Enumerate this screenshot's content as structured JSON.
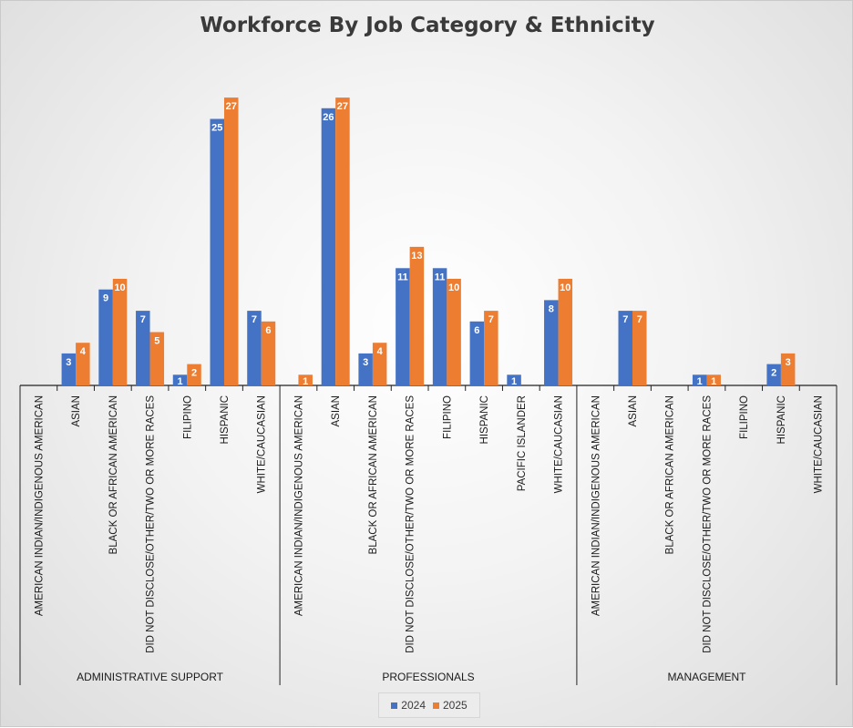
{
  "chart_data": {
    "type": "bar",
    "title": "Workforce By Job Category & Ethnicity",
    "ylim": [
      0,
      27
    ],
    "grid": false,
    "legend_position": "bottom",
    "series": [
      {
        "name": "2024",
        "color": "#4472c4"
      },
      {
        "name": "2025",
        "color": "#ed7d31"
      }
    ],
    "groups": [
      {
        "label": "ADMINISTRATIVE SUPPORT",
        "categories": [
          "AMERICAN INDIAN/INDIGENOUS AMERICAN",
          "ASIAN",
          "BLACK OR AFRICAN AMERICAN",
          "DID NOT DISCLOSE/OTHER/TWO OR MORE RACES",
          "FILIPINO",
          "HISPANIC",
          "WHITE/CAUCASIAN"
        ],
        "values_2024": [
          null,
          3,
          9,
          7,
          1,
          25,
          7
        ],
        "values_2025": [
          null,
          4,
          10,
          5,
          2,
          27,
          6
        ]
      },
      {
        "label": "PROFESSIONALS",
        "categories": [
          "AMERICAN INDIAN/INDIGENOUS AMERICAN",
          "ASIAN",
          "BLACK OR AFRICAN AMERICAN",
          "DID NOT DISCLOSE/OTHER/TWO OR MORE RACES",
          "FILIPINO",
          "HISPANIC",
          "PACIFIC ISLANDER",
          "WHITE/CAUCASIAN"
        ],
        "values_2024": [
          null,
          26,
          3,
          11,
          11,
          6,
          1,
          8
        ],
        "values_2025": [
          1,
          27,
          4,
          13,
          10,
          7,
          null,
          10
        ]
      },
      {
        "label": "MANAGEMENT",
        "categories": [
          "AMERICAN INDIAN/INDIGENOUS AMERICAN",
          "ASIAN",
          "BLACK OR AFRICAN AMERICAN",
          "DID NOT DISCLOSE/OTHER/TWO OR MORE RACES",
          "FILIPINO",
          "HISPANIC",
          "WHITE/CAUCASIAN"
        ],
        "values_2024": [
          null,
          7,
          null,
          1,
          null,
          2,
          null
        ],
        "values_2025": [
          null,
          7,
          null,
          1,
          null,
          3,
          null
        ]
      }
    ]
  }
}
